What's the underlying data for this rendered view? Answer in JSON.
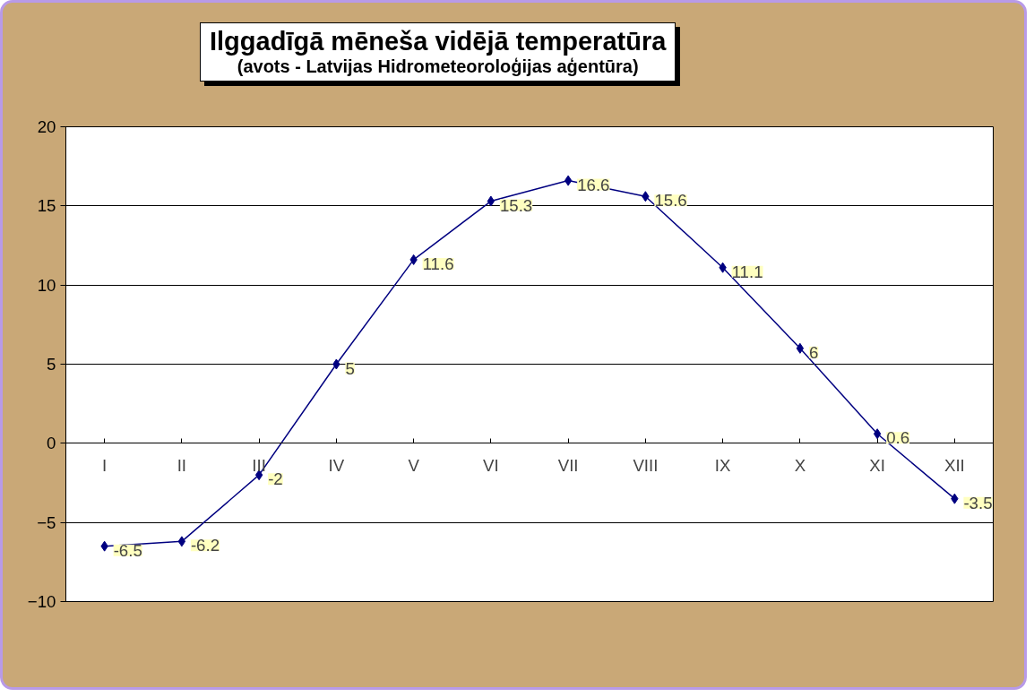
{
  "chart_data": {
    "type": "line",
    "title": "Ilggadīgā mēneša vidējā temperatūra",
    "subtitle": "(avots - Latvijas Hidrometeoroloģijas aģentūra)",
    "categories": [
      "I",
      "II",
      "III",
      "IV",
      "V",
      "VI",
      "VII",
      "VIII",
      "IX",
      "X",
      "XI",
      "XII"
    ],
    "series": [
      {
        "color": "#000080",
        "values": [
          -6.5,
          -6.2,
          -2,
          5,
          11.6,
          15.3,
          16.6,
          15.6,
          11.1,
          6,
          0.6,
          -3.5
        ]
      }
    ],
    "ylim": [
      -10,
      20
    ],
    "yticks": [
      -10,
      -5,
      0,
      5,
      10,
      15,
      20
    ],
    "grid": "y",
    "marker": "diamond",
    "line_style": "solid",
    "data_labels": true
  }
}
